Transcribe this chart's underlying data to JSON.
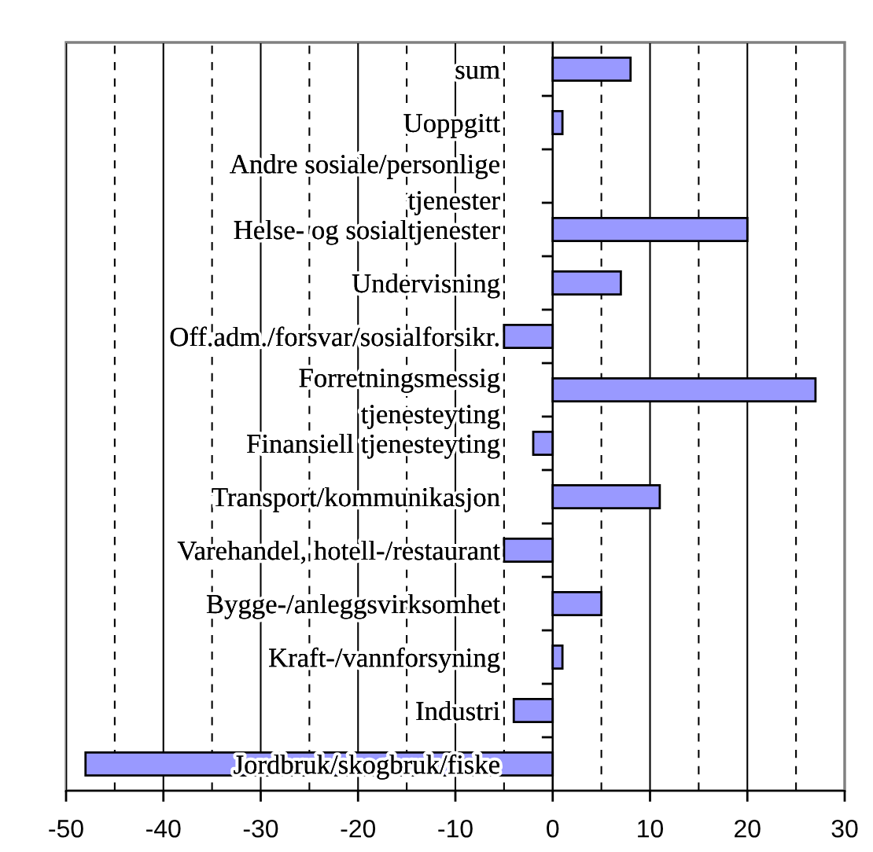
{
  "chart_data": {
    "type": "bar",
    "orientation": "horizontal",
    "categories": [
      "sum",
      "Uoppgitt",
      "Andre sosiale/personlige\ntjenester",
      "Helse- og sosialtjenester",
      "Undervisning",
      "Off.adm./forsvar/sosialforsikr.",
      "Forretningsmessig\ntjenesteyting",
      "Finansiell tjenesteyting",
      "Transport/kommunikasjon",
      "Varehandel, hotell-/restaurant",
      "Bygge-/anleggsvirksomhet",
      "Kraft-/vannforsyning",
      "Industri",
      "Jordbruk/skogbruk/fiske"
    ],
    "values": [
      8,
      1,
      null,
      20,
      7,
      -5,
      27,
      -2,
      11,
      -5,
      5,
      1,
      -4,
      -48
    ],
    "color": "#9999ff",
    "xlim": [
      -50,
      30
    ],
    "xticks": [
      -50,
      -40,
      -30,
      -20,
      -10,
      0,
      10,
      20,
      30
    ],
    "grid": "x",
    "ref_lines": [
      {
        "axis": "x",
        "value": -45,
        "color": "#000000",
        "line_style": "dashed"
      },
      {
        "axis": "x",
        "value": -35,
        "color": "#000000",
        "line_style": "dashed"
      },
      {
        "axis": "x",
        "value": -25,
        "color": "#000000",
        "line_style": "dashed"
      },
      {
        "axis": "x",
        "value": -15,
        "color": "#000000",
        "line_style": "dashed"
      },
      {
        "axis": "x",
        "value": -5,
        "color": "#000000",
        "line_style": "dashed"
      },
      {
        "axis": "x",
        "value": 5,
        "color": "#000000",
        "line_style": "dashed"
      },
      {
        "axis": "x",
        "value": 15,
        "color": "#000000",
        "line_style": "dashed"
      },
      {
        "axis": "x",
        "value": 25,
        "color": "#000000",
        "line_style": "dashed"
      }
    ]
  }
}
